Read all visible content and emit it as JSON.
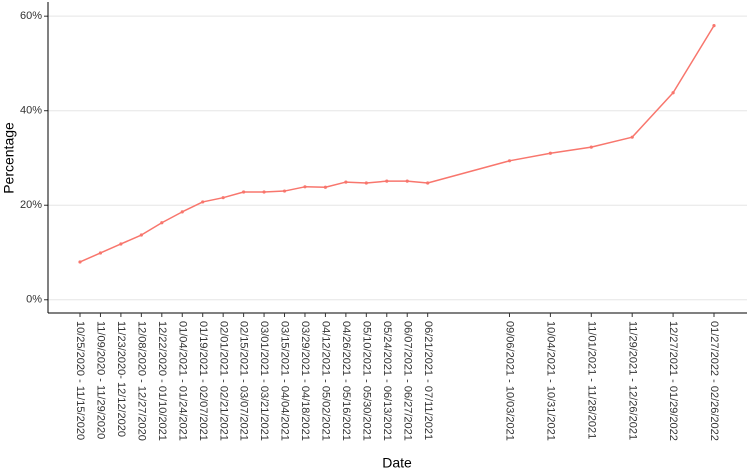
{
  "chart_data": {
    "type": "line",
    "x_label": "Date",
    "y_label": "Percentage",
    "categories": [
      "10/25/2020 - 11/15/2020",
      "11/09/2020 - 11/29/2020",
      "11/23/2020- 12/12/2020",
      "12/08/2020 - 12/27/2020",
      "12/22/2020 - 01/10/2021",
      "01/04/2021 - 01/24/2021",
      "01/19/2021 - 02/07/2021",
      "02/01/2021 - 02/21/2021",
      "02/15/2021 - 03/07/2021",
      "03/01/2021 - 03/21/2021",
      "03/15/2021 - 04/04/2021",
      "03/29/2021 - 04/18/2021",
      "04/12/2021 - 05/02/2021",
      "04/26/2021 - 05/16/2021",
      "05/10/2021 - 05/30/2021",
      "05/24/2021 - 06/13/2021",
      "06/07/2021 - 06/27/2021",
      "06/21/2021 - 07/11/2021",
      null,
      null,
      null,
      "09/06/2021 - 10/03/2021",
      null,
      "10/04/2021 - 10/31/2021",
      null,
      "11/01/2021 - 11/28/2021",
      null,
      "11/29/2021 - 12/26/2021",
      null,
      "12/27/2021 - 01/29/2022",
      null,
      "01/27/2022 - 02/26/2022"
    ],
    "values": [
      8.0,
      9.9,
      11.8,
      13.7,
      16.3,
      18.6,
      20.7,
      21.6,
      22.8,
      22.8,
      23.0,
      23.9,
      23.8,
      24.9,
      24.7,
      25.1,
      25.1,
      24.7,
      null,
      null,
      null,
      29.4,
      null,
      31.0,
      null,
      32.3,
      null,
      34.4,
      null,
      43.8,
      null,
      58.0
    ],
    "color": "#f8766d",
    "ylim": [
      -2.8,
      63
    ],
    "yticks": [
      {
        "value": 0,
        "label": "0%"
      },
      {
        "value": 20,
        "label": "20%"
      },
      {
        "value": 40,
        "label": "40%"
      },
      {
        "value": 60,
        "label": "60%"
      }
    ],
    "grid": true
  }
}
